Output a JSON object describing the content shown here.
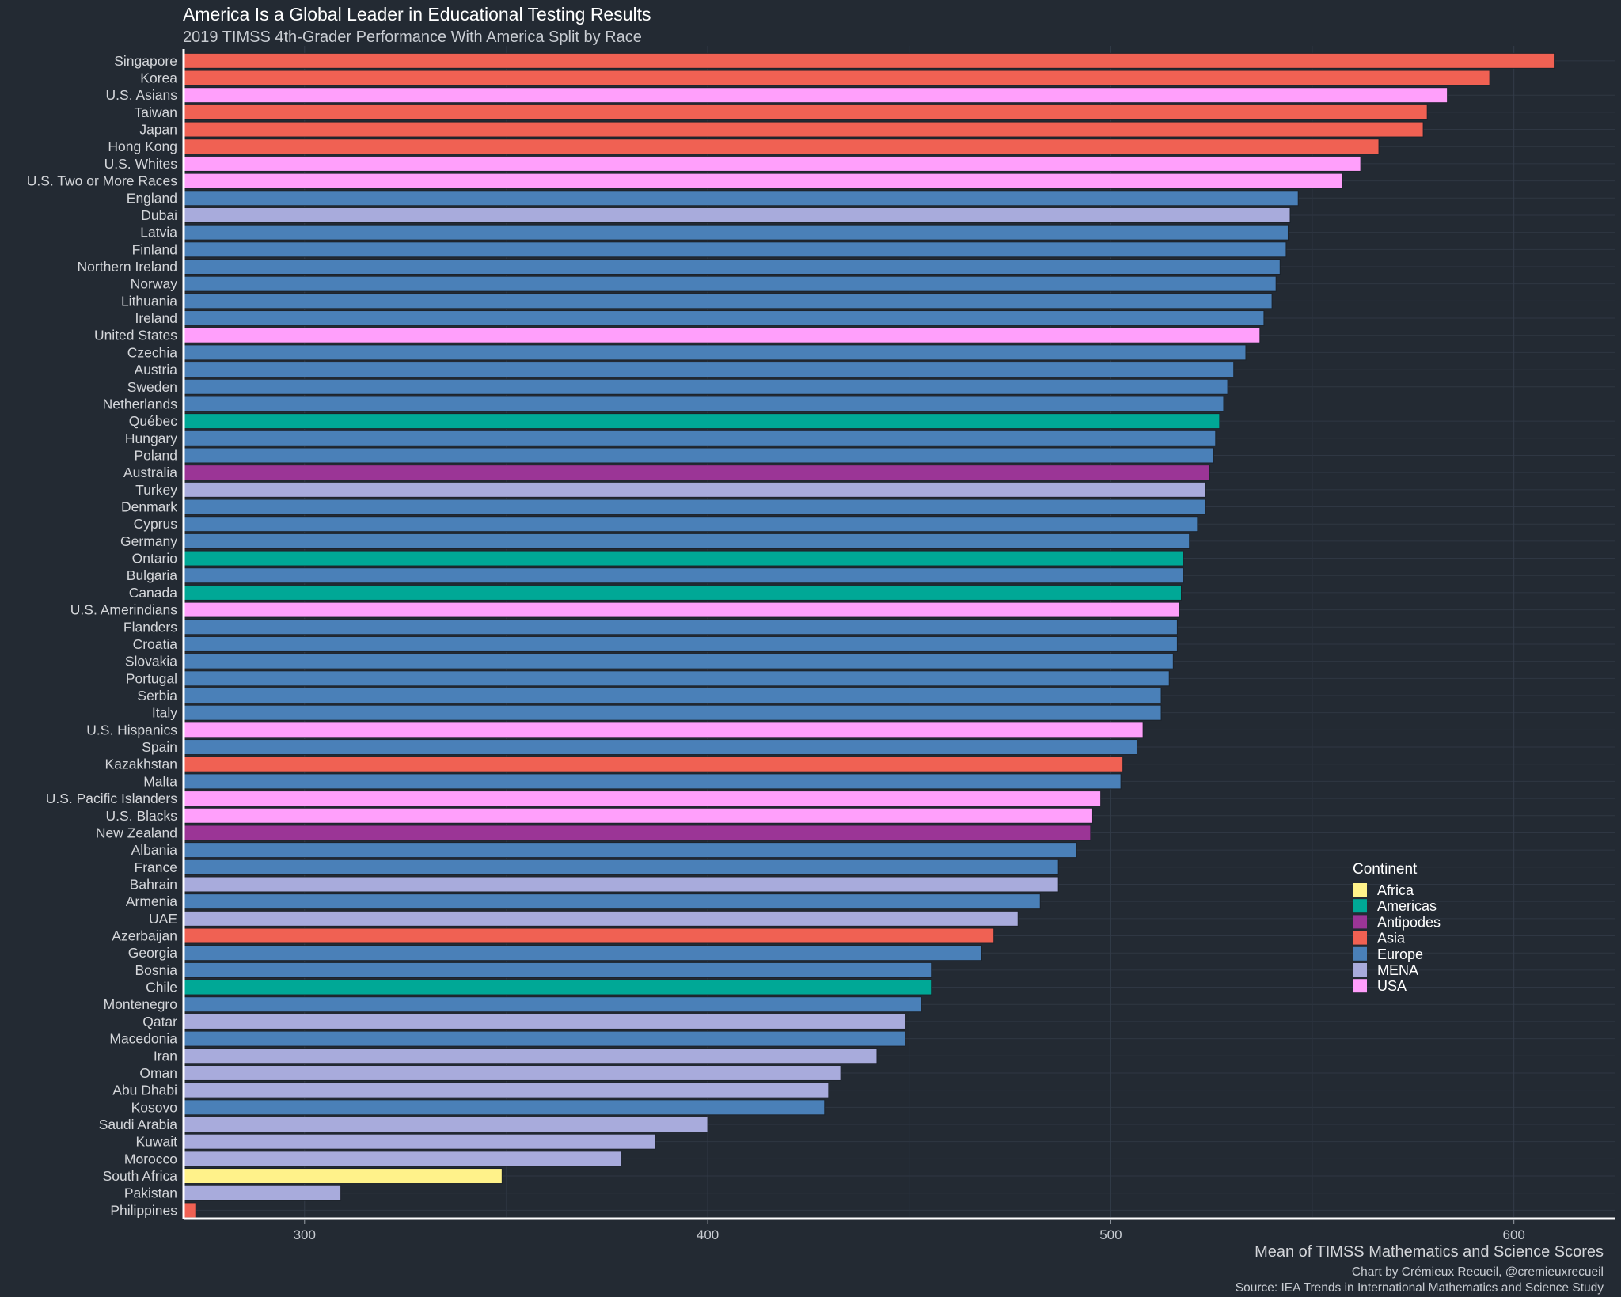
{
  "chart_data": {
    "type": "bar",
    "orientation": "horizontal",
    "title": "America Is a Global Leader in Educational Testing Results",
    "subtitle": "2019 TIMSS 4th-Grader Performance With America Split by Race",
    "xlabel": "Mean of TIMSS Mathematics and Science Scores",
    "caption_lines": [
      "Chart by Crémieux Recueil, @cremieuxrecueil",
      "Source: IEA Trends in International Mathematics and Science Study"
    ],
    "xlim": [
      270,
      625
    ],
    "x_ticks": [
      300,
      400,
      500,
      600
    ],
    "legend": {
      "title": "Continent",
      "position": "right",
      "entries": [
        {
          "name": "Africa",
          "color": "#fff28a"
        },
        {
          "name": "Americas",
          "color": "#00a896"
        },
        {
          "name": "Antipodes",
          "color": "#9b3596"
        },
        {
          "name": "Asia",
          "color": "#f06153"
        },
        {
          "name": "Europe",
          "color": "#4a80b8"
        },
        {
          "name": "MENA",
          "color": "#a8abdc"
        },
        {
          "name": "USA",
          "color": "#ff9ffb"
        }
      ]
    },
    "bars": [
      {
        "name": "Singapore",
        "value": 610,
        "group": "Asia"
      },
      {
        "name": "Korea",
        "value": 594,
        "group": "Asia"
      },
      {
        "name": "U.S. Asians",
        "value": 583.5,
        "group": "USA"
      },
      {
        "name": "Taiwan",
        "value": 578.5,
        "group": "Asia"
      },
      {
        "name": "Japan",
        "value": 577.5,
        "group": "Asia"
      },
      {
        "name": "Hong Kong",
        "value": 566.5,
        "group": "Asia"
      },
      {
        "name": "U.S. Whites",
        "value": 562,
        "group": "USA"
      },
      {
        "name": "U.S. Two or More Races",
        "value": 557.5,
        "group": "USA"
      },
      {
        "name": "England",
        "value": 546.5,
        "group": "Europe"
      },
      {
        "name": "Dubai",
        "value": 544.5,
        "group": "MENA"
      },
      {
        "name": "Latvia",
        "value": 544,
        "group": "Europe"
      },
      {
        "name": "Finland",
        "value": 543.5,
        "group": "Europe"
      },
      {
        "name": "Northern Ireland",
        "value": 542,
        "group": "Europe"
      },
      {
        "name": "Norway",
        "value": 541,
        "group": "Europe"
      },
      {
        "name": "Lithuania",
        "value": 540,
        "group": "Europe"
      },
      {
        "name": "Ireland",
        "value": 538,
        "group": "Europe"
      },
      {
        "name": "United States",
        "value": 537,
        "group": "USA"
      },
      {
        "name": "Czechia",
        "value": 533.5,
        "group": "Europe"
      },
      {
        "name": "Austria",
        "value": 530.5,
        "group": "Europe"
      },
      {
        "name": "Sweden",
        "value": 529,
        "group": "Europe"
      },
      {
        "name": "Netherlands",
        "value": 528,
        "group": "Europe"
      },
      {
        "name": "Québec",
        "value": 527,
        "group": "Americas"
      },
      {
        "name": "Hungary",
        "value": 526,
        "group": "Europe"
      },
      {
        "name": "Poland",
        "value": 525.5,
        "group": "Europe"
      },
      {
        "name": "Australia",
        "value": 524.5,
        "group": "Antipodes"
      },
      {
        "name": "Turkey",
        "value": 523.5,
        "group": "MENA"
      },
      {
        "name": "Denmark",
        "value": 523.5,
        "group": "Europe"
      },
      {
        "name": "Cyprus",
        "value": 521.5,
        "group": "Europe"
      },
      {
        "name": "Germany",
        "value": 519.5,
        "group": "Europe"
      },
      {
        "name": "Ontario",
        "value": 518,
        "group": "Americas"
      },
      {
        "name": "Bulgaria",
        "value": 518,
        "group": "Europe"
      },
      {
        "name": "Canada",
        "value": 517.5,
        "group": "Americas"
      },
      {
        "name": "U.S. Amerindians",
        "value": 517,
        "group": "USA"
      },
      {
        "name": "Flanders",
        "value": 516.5,
        "group": "Europe"
      },
      {
        "name": "Croatia",
        "value": 516.5,
        "group": "Europe"
      },
      {
        "name": "Slovakia",
        "value": 515.5,
        "group": "Europe"
      },
      {
        "name": "Portugal",
        "value": 514.5,
        "group": "Europe"
      },
      {
        "name": "Serbia",
        "value": 512.5,
        "group": "Europe"
      },
      {
        "name": "Italy",
        "value": 512.5,
        "group": "Europe"
      },
      {
        "name": "U.S. Hispanics",
        "value": 508,
        "group": "USA"
      },
      {
        "name": "Spain",
        "value": 506.5,
        "group": "Europe"
      },
      {
        "name": "Kazakhstan",
        "value": 503,
        "group": "Asia"
      },
      {
        "name": "Malta",
        "value": 502.5,
        "group": "Europe"
      },
      {
        "name": "U.S. Pacific Islanders",
        "value": 497.5,
        "group": "USA"
      },
      {
        "name": "U.S. Blacks",
        "value": 495.5,
        "group": "USA"
      },
      {
        "name": "New Zealand",
        "value": 495,
        "group": "Antipodes"
      },
      {
        "name": "Albania",
        "value": 491.5,
        "group": "Europe"
      },
      {
        "name": "France",
        "value": 487,
        "group": "Europe"
      },
      {
        "name": "Bahrain",
        "value": 487,
        "group": "MENA"
      },
      {
        "name": "Armenia",
        "value": 482.5,
        "group": "Europe"
      },
      {
        "name": "UAE",
        "value": 477,
        "group": "MENA"
      },
      {
        "name": "Azerbaijan",
        "value": 471,
        "group": "Asia"
      },
      {
        "name": "Georgia",
        "value": 468,
        "group": "Europe"
      },
      {
        "name": "Bosnia",
        "value": 455.5,
        "group": "Europe"
      },
      {
        "name": "Chile",
        "value": 455.5,
        "group": "Americas"
      },
      {
        "name": "Montenegro",
        "value": 453,
        "group": "Europe"
      },
      {
        "name": "Qatar",
        "value": 449,
        "group": "MENA"
      },
      {
        "name": "Macedonia",
        "value": 449,
        "group": "Europe"
      },
      {
        "name": "Iran",
        "value": 442,
        "group": "MENA"
      },
      {
        "name": "Oman",
        "value": 433,
        "group": "MENA"
      },
      {
        "name": "Abu Dhabi",
        "value": 430,
        "group": "MENA"
      },
      {
        "name": "Kosovo",
        "value": 429,
        "group": "Europe"
      },
      {
        "name": "Saudi Arabia",
        "value": 400,
        "group": "MENA"
      },
      {
        "name": "Kuwait",
        "value": 387,
        "group": "MENA"
      },
      {
        "name": "Morocco",
        "value": 378.5,
        "group": "MENA"
      },
      {
        "name": "South Africa",
        "value": 349,
        "group": "Africa"
      },
      {
        "name": "Pakistan",
        "value": 309,
        "group": "MENA"
      },
      {
        "name": "Philippines",
        "value": 273,
        "group": "Asia"
      }
    ]
  }
}
